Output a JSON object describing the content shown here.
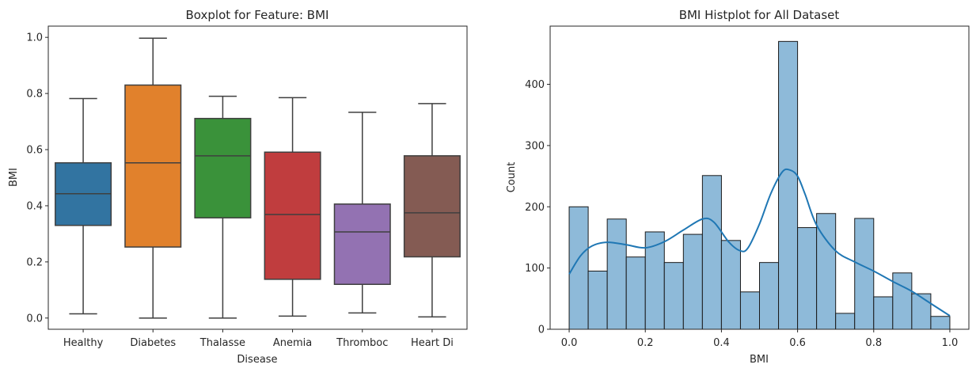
{
  "chart_data": [
    {
      "type": "box",
      "title": "Boxplot for Feature: BMI",
      "xlabel": "Disease",
      "ylabel": "BMI",
      "ylim": [
        -0.04,
        1.04
      ],
      "yticks": [
        0.0,
        0.2,
        0.4,
        0.6,
        0.8,
        1.0
      ],
      "ytick_labels": [
        "0.0",
        "0.2",
        "0.4",
        "0.6",
        "0.8",
        "1.0"
      ],
      "categories": [
        "Healthy",
        "Diabetes",
        "Thalasse",
        "Anemia",
        "Thromboc",
        "Heart Di"
      ],
      "boxes": [
        {
          "whisker_low": 0.015,
          "q1": 0.33,
          "median": 0.443,
          "q3": 0.553,
          "whisker_high": 0.782,
          "color": "#3274a1"
        },
        {
          "whisker_low": 0.0,
          "q1": 0.253,
          "median": 0.553,
          "q3": 0.83,
          "whisker_high": 0.997,
          "color": "#e1812c"
        },
        {
          "whisker_low": 0.0,
          "q1": 0.357,
          "median": 0.578,
          "q3": 0.711,
          "whisker_high": 0.79,
          "color": "#3a923a"
        },
        {
          "whisker_low": 0.007,
          "q1": 0.138,
          "median": 0.369,
          "q3": 0.591,
          "whisker_high": 0.785,
          "color": "#c03d3e"
        },
        {
          "whisker_low": 0.018,
          "q1": 0.12,
          "median": 0.307,
          "q3": 0.406,
          "whisker_high": 0.733,
          "color": "#9372b2"
        },
        {
          "whisker_low": 0.004,
          "q1": 0.218,
          "median": 0.375,
          "q3": 0.578,
          "whisker_high": 0.764,
          "color": "#845b53"
        }
      ],
      "grid": false,
      "legend": "none"
    },
    {
      "type": "histogram",
      "title": "BMI Histplot for All Dataset",
      "xlabel": "BMI",
      "ylabel": "Count",
      "xlim": [
        -0.05,
        1.05
      ],
      "ylim": [
        0,
        495
      ],
      "xticks": [
        0.0,
        0.2,
        0.4,
        0.6,
        0.8,
        1.0
      ],
      "xtick_labels": [
        "0.0",
        "0.2",
        "0.4",
        "0.6",
        "0.8",
        "1.0"
      ],
      "yticks": [
        0,
        100,
        200,
        300,
        400
      ],
      "ytick_labels": [
        "0",
        "100",
        "200",
        "300",
        "400"
      ],
      "bin_edges": [
        0.0,
        0.05,
        0.1,
        0.15,
        0.2,
        0.25,
        0.3,
        0.35,
        0.4,
        0.45,
        0.5,
        0.55,
        0.6,
        0.65,
        0.7,
        0.75,
        0.8,
        0.85,
        0.9,
        0.95,
        1.0
      ],
      "counts": [
        200,
        95,
        180,
        118,
        159,
        109,
        155,
        251,
        145,
        61,
        109,
        470,
        166,
        189,
        26,
        181,
        53,
        92,
        58,
        21
      ],
      "bar_color": "#8ebad9",
      "edge_color": "#1a1a1a",
      "kde": {
        "x": [
          0.0,
          0.03,
          0.06,
          0.1,
          0.15,
          0.2,
          0.25,
          0.3,
          0.35,
          0.38,
          0.42,
          0.45,
          0.47,
          0.5,
          0.53,
          0.56,
          0.58,
          0.6,
          0.62,
          0.65,
          0.7,
          0.75,
          0.8,
          0.85,
          0.9,
          0.95,
          1.0
        ],
        "y": [
          90,
          120,
          136,
          142,
          138,
          133,
          143,
          162,
          180,
          175,
          142,
          128,
          133,
          172,
          222,
          257,
          260,
          250,
          220,
          170,
          128,
          110,
          95,
          78,
          62,
          42,
          22
        ],
        "color": "#1f77b4"
      },
      "grid": false,
      "legend": "none"
    }
  ]
}
